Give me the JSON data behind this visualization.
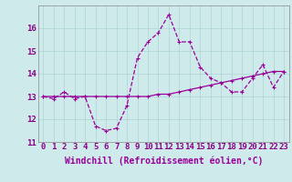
{
  "xlabel": "Windchill (Refroidissement éolien,°C)",
  "background_color": "#ceeaea",
  "line_color": "#990099",
  "hours": [
    0,
    1,
    2,
    3,
    4,
    5,
    6,
    7,
    8,
    9,
    10,
    11,
    12,
    13,
    14,
    15,
    16,
    17,
    18,
    19,
    20,
    21,
    22,
    23
  ],
  "windchill": [
    13.0,
    12.9,
    13.2,
    12.9,
    13.0,
    11.7,
    11.5,
    11.6,
    12.6,
    14.7,
    15.4,
    15.8,
    16.6,
    15.4,
    15.4,
    14.3,
    13.8,
    13.6,
    13.2,
    13.2,
    13.8,
    14.4,
    13.4,
    14.1
  ],
  "temp": [
    13.0,
    13.0,
    13.0,
    13.0,
    13.0,
    13.0,
    13.0,
    13.0,
    13.0,
    13.0,
    13.0,
    13.1,
    13.1,
    13.2,
    13.3,
    13.4,
    13.5,
    13.6,
    13.7,
    13.8,
    13.9,
    14.0,
    14.1,
    14.1
  ],
  "ylim": [
    11,
    17
  ],
  "yticks": [
    11,
    12,
    13,
    14,
    15,
    16
  ],
  "grid_color": "#aed4d4",
  "tick_color": "#880088",
  "xlabel_fontsize": 7,
  "tick_fontsize": 6.5
}
